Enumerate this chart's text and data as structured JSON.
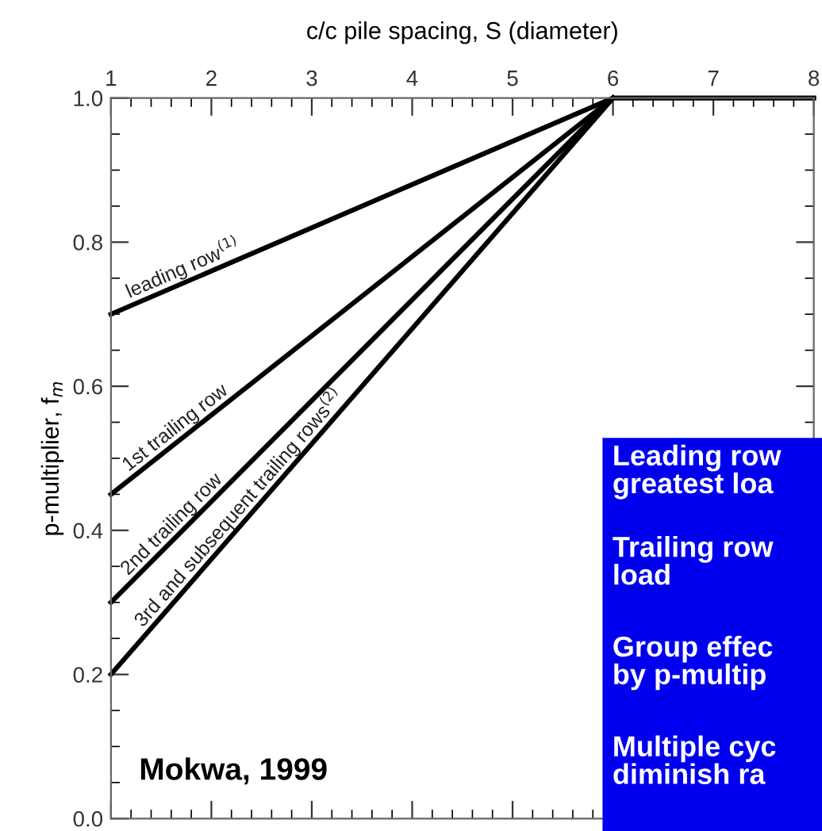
{
  "chart_data": {
    "type": "line",
    "xlabel": "c/c pile spacing, S (diameter)",
    "ylabel": "p-multiplier, f$_{m}$",
    "xlim": [
      1,
      8
    ],
    "xticks": [
      1,
      2,
      3,
      4,
      5,
      6,
      7,
      8
    ],
    "ylim": [
      0,
      1
    ],
    "yticks": [
      {
        "value": 0,
        "label": "0.0"
      },
      0.2,
      0.4,
      0.6,
      0.8,
      {
        "value": 1,
        "label": "1.0"
      }
    ],
    "grid": false,
    "legend": false,
    "marker": "none",
    "line_style": "solid",
    "series": [
      {
        "name": "leading row$^{(1)}$",
        "color": "#000000",
        "x": [
          1,
          6,
          8
        ],
        "values": [
          0.7,
          1.0,
          1.0
        ]
      },
      {
        "name": "1st trailing row",
        "color": "#000000",
        "x": [
          1,
          6
        ],
        "values": [
          0.45,
          1.0
        ]
      },
      {
        "name": "2nd trailing row",
        "color": "#000000",
        "x": [
          1,
          6
        ],
        "values": [
          0.3,
          1.0
        ]
      },
      {
        "name": "3rd and subsequent trailing rows$^{(2)}$",
        "color": "#000000",
        "x": [
          1,
          6
        ],
        "values": [
          0.2,
          1.0
        ]
      }
    ],
    "annotations": [
      "Mokwa, 1999",
      "Leading row\ngreatest loa",
      "Trailing row\nload",
      "Group effec\nby p-multip",
      "Multiple cyc\ndiminish ra"
    ]
  }
}
